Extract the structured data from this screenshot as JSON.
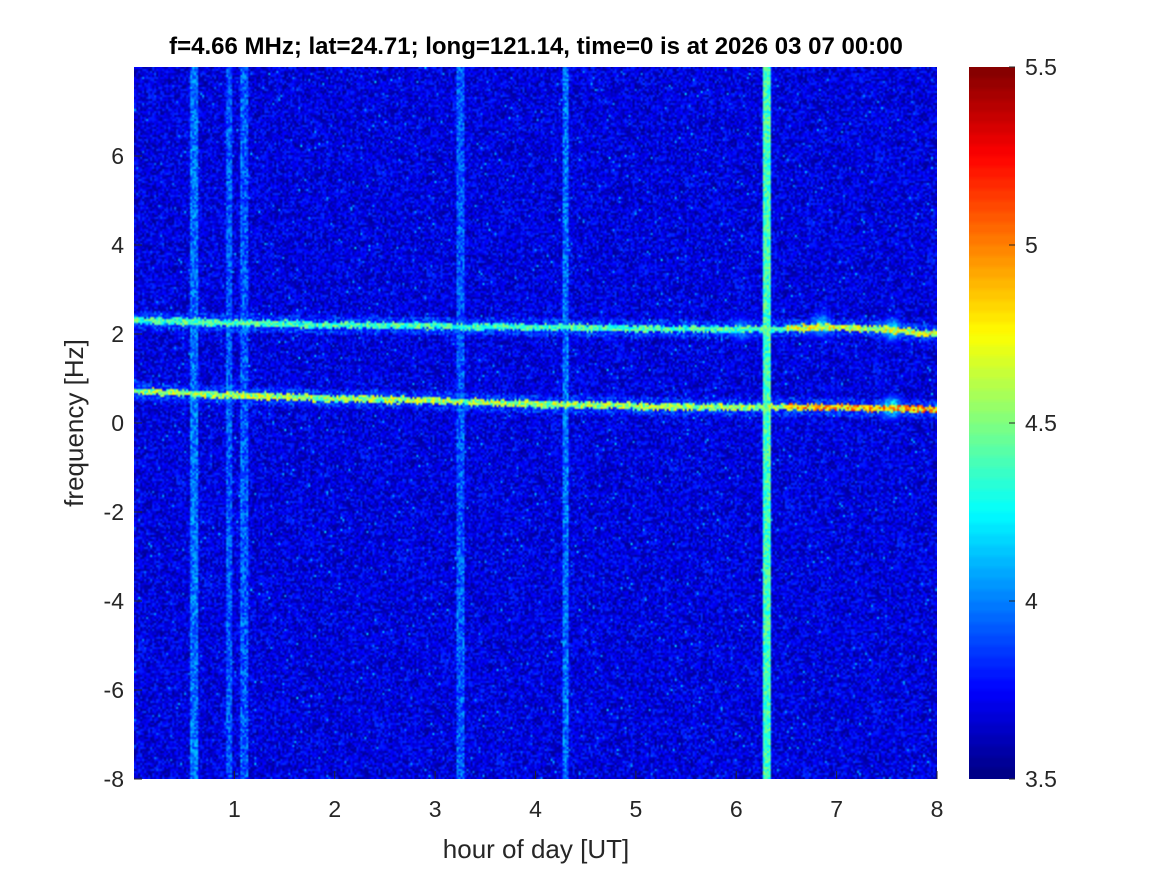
{
  "chart_data": {
    "type": "heatmap",
    "title": "f=4.66 MHz;  lat=24.71; long=121.14, time=0 is at 2026 03 07 00:00",
    "xlabel": "hour of day [UT]",
    "ylabel": "frequency [Hz]",
    "xlim": [
      0,
      8
    ],
    "ylim": [
      -8,
      8
    ],
    "xticks": [
      1,
      2,
      3,
      4,
      5,
      6,
      7,
      8
    ],
    "yticks": [
      -8,
      -6,
      -4,
      -2,
      0,
      2,
      4,
      6
    ],
    "colormap": "jet",
    "clim": [
      3.5,
      5.5
    ],
    "colorbar_ticks": [
      3.5,
      4,
      4.5,
      5,
      5.5
    ],
    "background_level": 3.65,
    "traces": [
      {
        "name": "upper trace",
        "points": [
          [
            0.0,
            2.3
          ],
          [
            1.0,
            2.25
          ],
          [
            2.0,
            2.2
          ],
          [
            3.0,
            2.18
          ],
          [
            4.0,
            2.15
          ],
          [
            5.0,
            2.12
          ],
          [
            6.0,
            2.1
          ],
          [
            7.0,
            2.15
          ],
          [
            7.5,
            2.1
          ],
          [
            8.0,
            2.0
          ]
        ],
        "peak_level": 4.9
      },
      {
        "name": "lower trace",
        "points": [
          [
            0.0,
            0.72
          ],
          [
            1.0,
            0.62
          ],
          [
            2.0,
            0.55
          ],
          [
            3.0,
            0.5
          ],
          [
            4.0,
            0.42
          ],
          [
            5.0,
            0.38
          ],
          [
            6.0,
            0.35
          ],
          [
            7.0,
            0.35
          ],
          [
            7.5,
            0.33
          ],
          [
            8.0,
            0.3
          ]
        ],
        "peak_level": 5.2
      }
    ],
    "vertical_bands": [
      {
        "x": 0.6,
        "level": 3.9
      },
      {
        "x": 0.95,
        "level": 3.85
      },
      {
        "x": 1.1,
        "level": 3.85
      },
      {
        "x": 3.25,
        "level": 3.85
      },
      {
        "x": 4.3,
        "level": 3.9
      },
      {
        "x": 6.3,
        "level": 4.3
      }
    ],
    "blobs": [
      {
        "x": 6.85,
        "y": 2.2,
        "level": 4.5
      },
      {
        "x": 7.55,
        "y": 2.1,
        "level": 4.6
      },
      {
        "x": 7.55,
        "y": 0.35,
        "level": 4.7
      },
      {
        "x": 6.05,
        "y": 2.1,
        "level": 4.3
      }
    ]
  }
}
